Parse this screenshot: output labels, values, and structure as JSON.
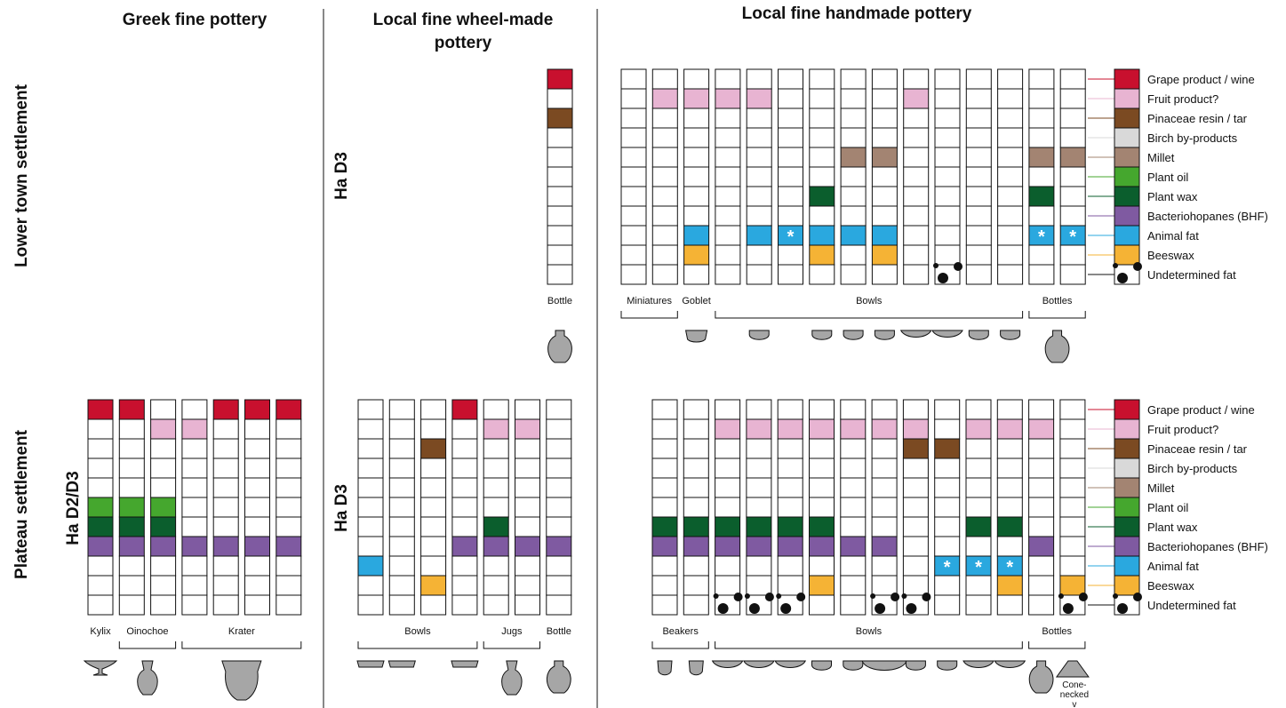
{
  "headers": {
    "greek": "Greek fine pottery",
    "wheel_line1": "Local fine wheel-made",
    "wheel_line2": "pottery",
    "hand": "Local fine handmade pottery"
  },
  "sites": {
    "lower": "Lower town settlement",
    "plateau": "Plateau settlement"
  },
  "phases": {
    "plateau_greek": "Ha D2/D3",
    "plateau_wheel": "Ha D3",
    "lower_wheel": "Ha D3"
  },
  "residues": [
    {
      "name": "Grape product / wine",
      "color": "#c8102e"
    },
    {
      "name": "Fruit product?",
      "color": "#e8b4d2"
    },
    {
      "name": "Pinaceae resin / tar",
      "color": "#7b4a22"
    },
    {
      "name": "Birch by-products",
      "color": "#d9d9d9"
    },
    {
      "name": "Millet",
      "color": "#a38472"
    },
    {
      "name": "Plant oil",
      "color": "#45a72e"
    },
    {
      "name": "Plant wax",
      "color": "#0b5e2d"
    },
    {
      "name": "Bacteriohopanes (BHF)",
      "color": "#7f5aa1"
    },
    {
      "name": "Animal fat",
      "color": "#2aa8df"
    },
    {
      "name": "Beeswax",
      "color": "#f5b335"
    },
    {
      "name": "Undetermined fat",
      "color": "#ffffff",
      "pattern": "dots"
    }
  ],
  "marker": "*",
  "panels": {
    "lower_wheel": {
      "columns": [
        {
          "fills": [
            0,
            2
          ]
        }
      ],
      "groups": [
        {
          "label": "Bottle",
          "from": 0,
          "to": 0,
          "bracket": false
        }
      ],
      "vessels": [
        {
          "shape": "bottle",
          "col": 0
        }
      ]
    },
    "lower_hand": {
      "columns": [
        {
          "fills": []
        },
        {
          "fills": [
            1
          ]
        },
        {
          "fills": [
            1,
            8,
            9
          ]
        },
        {
          "fills": [
            1
          ]
        },
        {
          "fills": [
            1,
            8
          ]
        },
        {
          "fills": [
            8
          ],
          "star": [
            8
          ]
        },
        {
          "fills": [
            6,
            8,
            9
          ]
        },
        {
          "fills": [
            4,
            8
          ]
        },
        {
          "fills": [
            4,
            8,
            9
          ]
        },
        {
          "fills": [
            1
          ]
        },
        {
          "fills": [],
          "dots": [
            10
          ]
        },
        {
          "fills": []
        },
        {
          "fills": []
        },
        {
          "fills": [
            4,
            6,
            8
          ],
          "star": [
            8
          ]
        },
        {
          "fills": [
            4,
            8
          ],
          "star": [
            8
          ]
        }
      ],
      "groups": [
        {
          "label": "Miniatures",
          "from": 0,
          "to": 1,
          "bracket": true
        },
        {
          "label": "Goblet",
          "from": 2,
          "to": 2,
          "bracket": false
        },
        {
          "label": "Bowls",
          "from": 3,
          "to": 12,
          "bracket": true
        },
        {
          "label": "Bottles",
          "from": 13,
          "to": 14,
          "bracket": true
        }
      ],
      "vessels": [
        {
          "shape": "goblet",
          "col": 2
        },
        {
          "shape": "cup",
          "col": 4
        },
        {
          "shape": "cup",
          "col": 6
        },
        {
          "shape": "cup",
          "col": 7
        },
        {
          "shape": "cup",
          "col": 8
        },
        {
          "shape": "dish",
          "col": 9
        },
        {
          "shape": "dish",
          "col": 10
        },
        {
          "shape": "cup",
          "col": 11
        },
        {
          "shape": "cup",
          "col": 12
        },
        {
          "shape": "bottle",
          "col": 13.5
        }
      ]
    },
    "plateau_greek": {
      "columns": [
        {
          "fills": [
            0,
            5,
            6,
            7
          ]
        },
        {
          "fills": [
            0,
            5,
            6,
            7
          ]
        },
        {
          "fills": [
            1,
            5,
            6,
            7
          ]
        },
        {
          "fills": [
            1,
            7
          ]
        },
        {
          "fills": [
            0,
            7
          ]
        },
        {
          "fills": [
            0,
            7
          ]
        },
        {
          "fills": [
            0,
            7
          ]
        }
      ],
      "groups": [
        {
          "label": "Kylix",
          "from": 0,
          "to": 0,
          "bracket": false
        },
        {
          "label": "Oinochoe",
          "from": 1,
          "to": 2,
          "bracket": true
        },
        {
          "label": "Krater",
          "from": 3,
          "to": 6,
          "bracket": true
        }
      ],
      "vessels": [
        {
          "shape": "kylix",
          "col": 0
        },
        {
          "shape": "jug",
          "col": 1.5
        },
        {
          "shape": "krater",
          "col": 4.5
        }
      ]
    },
    "plateau_wheel": {
      "columns": [
        {
          "fills": [
            8
          ]
        },
        {
          "fills": []
        },
        {
          "fills": [
            2,
            9
          ]
        },
        {
          "fills": [
            0,
            7
          ]
        },
        {
          "fills": [
            1,
            6,
            7
          ]
        },
        {
          "fills": [
            1,
            7
          ]
        },
        {
          "fills": [
            7
          ]
        }
      ],
      "groups": [
        {
          "label": "Bowls",
          "from": 0,
          "to": 3,
          "bracket": true
        },
        {
          "label": "Jugs",
          "from": 4,
          "to": 5,
          "bracket": true
        },
        {
          "label": "Bottle",
          "from": 6,
          "to": 6,
          "bracket": false
        }
      ],
      "vessels": [
        {
          "shape": "lowbowl",
          "col": 0
        },
        {
          "shape": "lowbowl",
          "col": 1
        },
        {
          "shape": "lowbowl",
          "col": 3
        },
        {
          "shape": "jug",
          "col": 4.5
        },
        {
          "shape": "bottle",
          "col": 6
        }
      ]
    },
    "plateau_hand": {
      "columns": [
        {
          "fills": [
            6,
            7
          ]
        },
        {
          "fills": [
            6,
            7
          ]
        },
        {
          "fills": [
            1,
            6,
            7
          ],
          "dots": [
            10
          ]
        },
        {
          "fills": [
            1,
            6,
            7
          ],
          "dots": [
            10
          ]
        },
        {
          "fills": [
            1,
            6,
            7
          ],
          "dots": [
            10
          ]
        },
        {
          "fills": [
            1,
            6,
            7,
            9
          ]
        },
        {
          "fills": [
            1,
            7
          ]
        },
        {
          "fills": [
            1,
            7
          ],
          "dots": [
            10
          ]
        },
        {
          "fills": [
            1,
            2
          ],
          "dots": [
            10
          ]
        },
        {
          "fills": [
            2,
            8
          ],
          "star": [
            8
          ]
        },
        {
          "fills": [
            1,
            6,
            8
          ],
          "star": [
            8
          ]
        },
        {
          "fills": [
            1,
            6,
            8,
            9
          ],
          "star": [
            8
          ]
        },
        {
          "fills": [
            1,
            7
          ]
        },
        {
          "fills": [
            9
          ],
          "dots": [
            10
          ]
        }
      ],
      "groups": [
        {
          "label": "Beakers",
          "from": 0,
          "to": 1,
          "bracket": true
        },
        {
          "label": "Bowls",
          "from": 2,
          "to": 11,
          "bracket": true
        },
        {
          "label": "Bottles",
          "from": 12,
          "to": 13,
          "bracket": true
        }
      ],
      "vessels": [
        {
          "shape": "beaker",
          "col": 0
        },
        {
          "shape": "beaker",
          "col": 1
        },
        {
          "shape": "dish",
          "col": 2
        },
        {
          "shape": "dish",
          "col": 3
        },
        {
          "shape": "dish",
          "col": 4
        },
        {
          "shape": "cup",
          "col": 5
        },
        {
          "shape": "cup",
          "col": 6
        },
        {
          "shape": "bigbowl",
          "col": 7
        },
        {
          "shape": "cup",
          "col": 8
        },
        {
          "shape": "cup",
          "col": 9
        },
        {
          "shape": "dish",
          "col": 10
        },
        {
          "shape": "dish",
          "col": 11
        },
        {
          "shape": "bottle",
          "col": 12
        },
        {
          "shape": "cone",
          "col": 13
        }
      ],
      "extra_label": "Cone-necked v"
    }
  }
}
